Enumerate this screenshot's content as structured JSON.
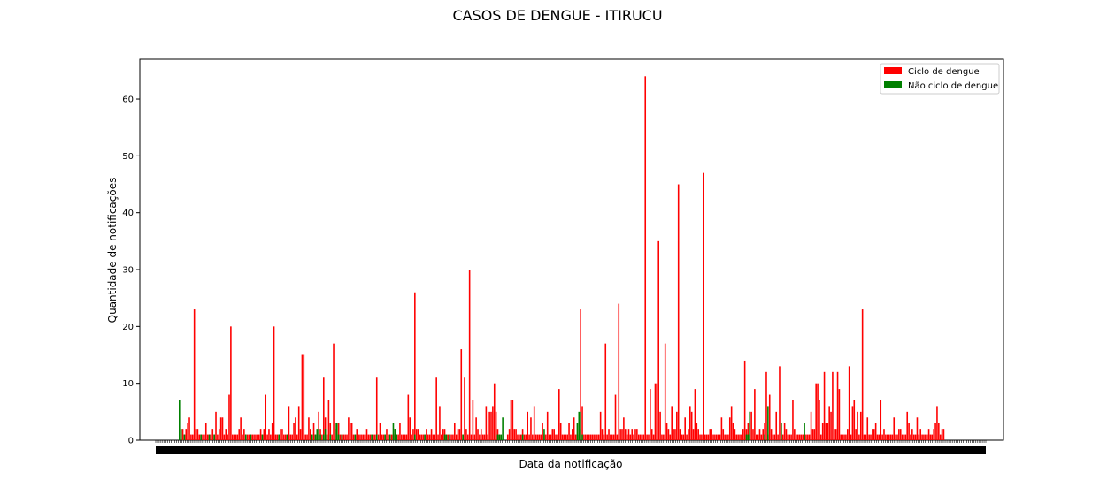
{
  "chart_data": {
    "type": "bar",
    "title": "CASOS DE DENGUE - ITIRUCU",
    "xlabel": "Data da notificação",
    "ylabel": "Quantidade de notificações",
    "ylim": [
      0,
      67
    ],
    "yticks": [
      0,
      10,
      20,
      30,
      40,
      50,
      60
    ],
    "grid": false,
    "legend_position": "top-right",
    "x_tick_labels_note": "",
    "series": [
      {
        "name": "Ciclo de dengue",
        "color": "#ff0000",
        "values": [
          0,
          0,
          2,
          1,
          2,
          3,
          4,
          1,
          1,
          23,
          2,
          2,
          1,
          1,
          1,
          1,
          3,
          1,
          1,
          1,
          2,
          1,
          5,
          1,
          2,
          4,
          4,
          1,
          2,
          1,
          8,
          20,
          1,
          1,
          1,
          1,
          2,
          4,
          1,
          2,
          1,
          1,
          1,
          1,
          1,
          1,
          1,
          1,
          1,
          2,
          1,
          2,
          8,
          1,
          2,
          1,
          3,
          20,
          1,
          1,
          1,
          2,
          2,
          1,
          1,
          1,
          6,
          1,
          1,
          3,
          4,
          1,
          6,
          2,
          15,
          15,
          1,
          1,
          4,
          2,
          1,
          3,
          1,
          1,
          5,
          2,
          1,
          11,
          4,
          1,
          7,
          3,
          1,
          17,
          2,
          1,
          3,
          1,
          1,
          1,
          1,
          1,
          4,
          3,
          3,
          1,
          1,
          2,
          1,
          1,
          1,
          1,
          1,
          2,
          1,
          1,
          1,
          1,
          1,
          11,
          1,
          3,
          1,
          1,
          1,
          2,
          1,
          1,
          1,
          1,
          2,
          1,
          1,
          3,
          1,
          1,
          1,
          1,
          8,
          4,
          1,
          2,
          26,
          2,
          2,
          1,
          1,
          1,
          1,
          2,
          1,
          1,
          2,
          1,
          1,
          11,
          1,
          6,
          1,
          2,
          2,
          1,
          1,
          1,
          1,
          1,
          3,
          1,
          2,
          2,
          16,
          1,
          11,
          2,
          1,
          30,
          1,
          7,
          1,
          4,
          2,
          1,
          2,
          1,
          1,
          6,
          1,
          5,
          5,
          6,
          10,
          5,
          2,
          1,
          0,
          0,
          0,
          0,
          1,
          2,
          7,
          7,
          2,
          2,
          1,
          1,
          1,
          2,
          1,
          1,
          5,
          1,
          4,
          1,
          6,
          1,
          1,
          1,
          1,
          3,
          1,
          1,
          5,
          1,
          1,
          2,
          2,
          1,
          1,
          9,
          3,
          1,
          1,
          1,
          1,
          3,
          1,
          2,
          4,
          1,
          1,
          2,
          23,
          6,
          1,
          1,
          1,
          1,
          1,
          1,
          1,
          1,
          1,
          1,
          5,
          2,
          1,
          17,
          1,
          2,
          1,
          1,
          1,
          8,
          1,
          24,
          2,
          2,
          4,
          2,
          1,
          2,
          1,
          2,
          1,
          2,
          2,
          1,
          1,
          1,
          1,
          64,
          1,
          1,
          9,
          2,
          1,
          10,
          10,
          35,
          5,
          1,
          1,
          17,
          3,
          2,
          1,
          6,
          2,
          2,
          5,
          45,
          2,
          1,
          1,
          4,
          1,
          2,
          6,
          5,
          2,
          9,
          3,
          2,
          1,
          1,
          47,
          1,
          1,
          1,
          2,
          2,
          1,
          1,
          1,
          1,
          1,
          4,
          2,
          1,
          1,
          1,
          4,
          6,
          3,
          2,
          1,
          1,
          1,
          1,
          2,
          14,
          2,
          3,
          5,
          5,
          2,
          9,
          1,
          1,
          2,
          1,
          2,
          3,
          12,
          1,
          8,
          2,
          1,
          1,
          5,
          1,
          13,
          3,
          1,
          3,
          2,
          1,
          1,
          1,
          7,
          2,
          1,
          1,
          1,
          1,
          1,
          1,
          1,
          1,
          1,
          5,
          2,
          2,
          10,
          10,
          7,
          1,
          3,
          12,
          3,
          3,
          6,
          5,
          12,
          2,
          2,
          12,
          9,
          1,
          1,
          1,
          1,
          2,
          13,
          1,
          6,
          7,
          2,
          5,
          1,
          5,
          23,
          1,
          1,
          4,
          1,
          1,
          2,
          2,
          3,
          1,
          1,
          7,
          1,
          2,
          1,
          1,
          1,
          1,
          1,
          4,
          1,
          1,
          2,
          2,
          1,
          1,
          1,
          5,
          3,
          1,
          2,
          1,
          1,
          4,
          1,
          2,
          1,
          1,
          1,
          1,
          2,
          1,
          1,
          2,
          3,
          6,
          3,
          1,
          2,
          2
        ]
      },
      {
        "name": "Não ciclo de dengue",
        "color": "#008000",
        "values": [
          7,
          2,
          0,
          1,
          0,
          0,
          0,
          0,
          0,
          0,
          0,
          0,
          0,
          1,
          0,
          0,
          0,
          0,
          1,
          0,
          0,
          1,
          0,
          0,
          0,
          0,
          0,
          0,
          0,
          0,
          0,
          0,
          0,
          0,
          0,
          0,
          0,
          0,
          0,
          0,
          1,
          0,
          0,
          1,
          0,
          0,
          0,
          0,
          0,
          0,
          1,
          0,
          0,
          0,
          0,
          0,
          0,
          0,
          0,
          0,
          1,
          0,
          0,
          0,
          0,
          1,
          0,
          0,
          0,
          0,
          0,
          0,
          0,
          0,
          0,
          0,
          0,
          0,
          0,
          0,
          1,
          0,
          1,
          2,
          2,
          1,
          0,
          1,
          2,
          0,
          0,
          1,
          0,
          0,
          3,
          3,
          1,
          0,
          1,
          0,
          0,
          0,
          0,
          0,
          0,
          0,
          1,
          0,
          0,
          0,
          0,
          0,
          0,
          0,
          0,
          0,
          1,
          0,
          0,
          1,
          0,
          0,
          0,
          0,
          1,
          0,
          0,
          1,
          0,
          3,
          2,
          1,
          0,
          0,
          0,
          0,
          0,
          0,
          0,
          0,
          0,
          0,
          1,
          0,
          0,
          0,
          0,
          0,
          1,
          0,
          0,
          0,
          0,
          0,
          0,
          0,
          0,
          0,
          0,
          0,
          1,
          1,
          0,
          1,
          0,
          0,
          0,
          0,
          0,
          0,
          0,
          1,
          0,
          0,
          0,
          0,
          0,
          0,
          0,
          0,
          0,
          0,
          0,
          0,
          0,
          0,
          0,
          0,
          0,
          0,
          0,
          0,
          1,
          1,
          1,
          4,
          0,
          0,
          0,
          0,
          0,
          0,
          0,
          0,
          0,
          0,
          0,
          1,
          0,
          0,
          0,
          0,
          0,
          0,
          0,
          0,
          0,
          0,
          0,
          0,
          2,
          0,
          0,
          0,
          0,
          0,
          0,
          0,
          0,
          0,
          0,
          0,
          0,
          0,
          0,
          0,
          0,
          0,
          0,
          0,
          3,
          5,
          5,
          1,
          0,
          0,
          0,
          0,
          0,
          0,
          0,
          0,
          0,
          0,
          0,
          0,
          0,
          0,
          0,
          0,
          0,
          0,
          0,
          0,
          0,
          0,
          0,
          0,
          0,
          0,
          0,
          0,
          0,
          0,
          0,
          0,
          0,
          0,
          0,
          0,
          0,
          0,
          0,
          0,
          0,
          0,
          0,
          0,
          0,
          0,
          0,
          0,
          0,
          0,
          0,
          0,
          0,
          0,
          0,
          0,
          0,
          0,
          0,
          0,
          0,
          0,
          0,
          0,
          0,
          0,
          0,
          0,
          0,
          0,
          0,
          0,
          0,
          0,
          0,
          0,
          0,
          0,
          0,
          0,
          0,
          0,
          0,
          0,
          0,
          0,
          0,
          0,
          0,
          0,
          0,
          0,
          0,
          0,
          0,
          0,
          0,
          0,
          1,
          1,
          5,
          0,
          0,
          0,
          0,
          0,
          0,
          0,
          0,
          1,
          0,
          6,
          0,
          0,
          0,
          0,
          0,
          0,
          0,
          3,
          0,
          0,
          0,
          0,
          0,
          0,
          0,
          0,
          0,
          0,
          0,
          0,
          0,
          3,
          0,
          0,
          0,
          0,
          0,
          0,
          0,
          0,
          0,
          0,
          0,
          0,
          0,
          0,
          0,
          0,
          0,
          0,
          0,
          0,
          0,
          0,
          0,
          0,
          0,
          0,
          0,
          0,
          0,
          0,
          0,
          0,
          0,
          0,
          0,
          0,
          0,
          0,
          0,
          0,
          0,
          0,
          0,
          0,
          0,
          0,
          0,
          0,
          0,
          0,
          0,
          0,
          0,
          0,
          0,
          0,
          0,
          0,
          0,
          0,
          0,
          0,
          0,
          0,
          0,
          0,
          0,
          0,
          0,
          0,
          0,
          0,
          0,
          0,
          0,
          0,
          0,
          0,
          0,
          0,
          0,
          0,
          0,
          0,
          0,
          0,
          0,
          0,
          0,
          0,
          0,
          0,
          0,
          0,
          0,
          0
        ]
      }
    ]
  },
  "colors": {
    "axis": "#000000",
    "legend_border": "#cccccc",
    "background": "#ffffff"
  }
}
